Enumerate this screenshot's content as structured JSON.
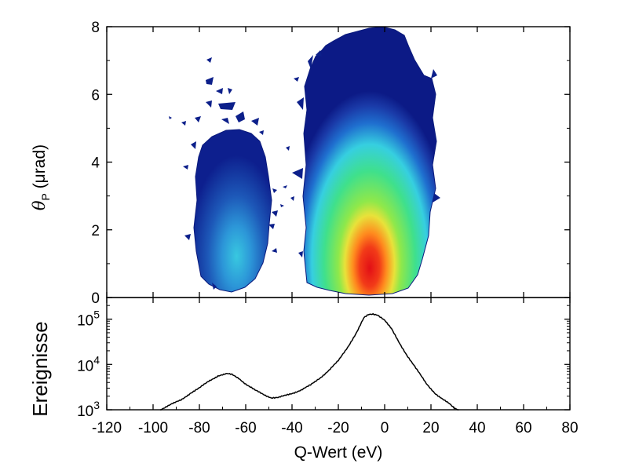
{
  "chart_data": [
    {
      "type": "heatmap",
      "title": "",
      "xlabel": "",
      "ylabel_symbol": "θ",
      "ylabel_subscript": "P",
      "ylabel_unit": " (μrad)",
      "xlim": [
        -120,
        80
      ],
      "ylim": [
        0,
        8
      ],
      "yticks": [
        0,
        2,
        4,
        6,
        8
      ],
      "grid": false,
      "colormap": [
        "#ffffff",
        "#0a1a8c",
        "#1f5fc8",
        "#3fd0e0",
        "#39e08a",
        "#9be83a",
        "#ffd22a",
        "#ff6a1a",
        "#e41414"
      ],
      "peaks": [
        {
          "q_center": -6,
          "theta_center": 0.8,
          "relative_intensity": 1.0
        },
        {
          "q_center": -67,
          "theta_center": 0.8,
          "relative_intensity": 0.3
        }
      ]
    },
    {
      "type": "line",
      "title": "",
      "xlabel": "Q-Wert (eV)",
      "ylabel": "Ereignisse",
      "xlim": [
        -120,
        80
      ],
      "ylim": [
        1000,
        300000
      ],
      "yscale": "log",
      "yticks": [
        {
          "value": 1000,
          "base": "10",
          "exp": "3"
        },
        {
          "value": 10000,
          "base": "10",
          "exp": "4"
        },
        {
          "value": 100000,
          "base": "10",
          "exp": "5"
        }
      ],
      "xticks": [
        -120,
        -100,
        -80,
        -60,
        -40,
        -20,
        0,
        20,
        40,
        60,
        80
      ],
      "grid": false,
      "series": [
        {
          "x": [
            -97,
            -93,
            -88,
            -84,
            -80,
            -76,
            -72,
            -68,
            -66,
            -63,
            -60,
            -56,
            -52,
            -49,
            -46,
            -43,
            -40,
            -36,
            -32,
            -28,
            -24,
            -20,
            -16,
            -12,
            -9,
            -7,
            -5,
            -3,
            0,
            3,
            6,
            10,
            14,
            18,
            22,
            25,
            28,
            30,
            32
          ],
          "y": [
            1000,
            1250,
            1650,
            2300,
            3000,
            4300,
            5600,
            6200,
            6000,
            5000,
            3700,
            2700,
            2150,
            1850,
            1850,
            2050,
            2300,
            2750,
            3500,
            5000,
            7500,
            12000,
            24000,
            52000,
            105000,
            125000,
            130000,
            125000,
            95000,
            60000,
            32000,
            15000,
            7500,
            3800,
            2250,
            1700,
            1350,
            1100,
            1000
          ]
        }
      ]
    }
  ]
}
